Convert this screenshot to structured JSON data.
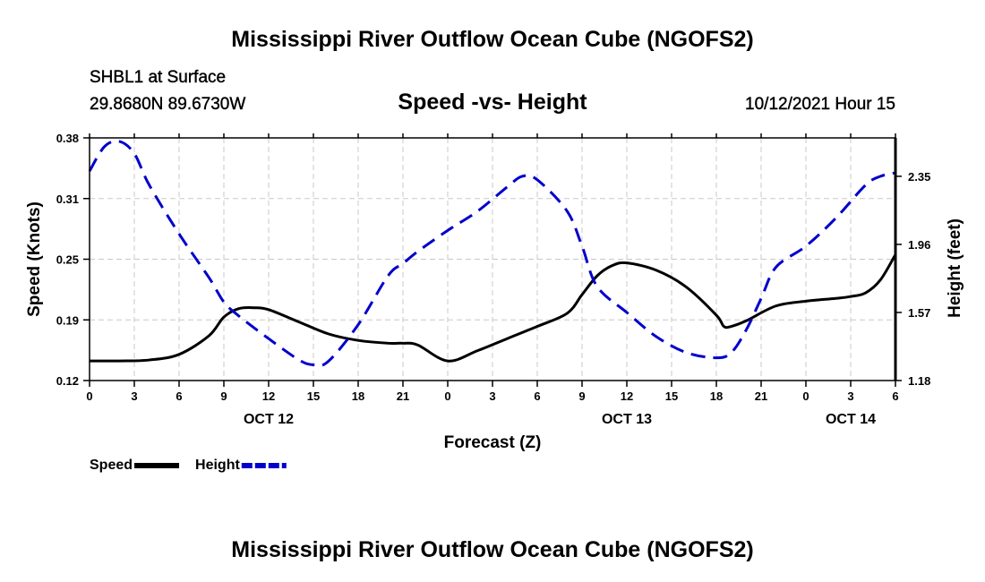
{
  "header": {
    "title": "Mississippi River Outflow Ocean Cube (NGOFS2)",
    "station": "SHBL1 at Surface",
    "coords": "29.8680N  89.6730W",
    "subtitle": "Speed -vs- Height",
    "date": "10/12/2021 Hour 15"
  },
  "footer": {
    "title": "Mississippi River Outflow Ocean Cube (NGOFS2)"
  },
  "chart_data": {
    "type": "line",
    "title": "Speed -vs- Height",
    "xlabel": "Forecast (Z)",
    "ylabel": "Speed (Knots)",
    "ylabel_right": "Height (feet)",
    "grid": true,
    "legend_position": "bottom-left",
    "x_range_hours": [
      0,
      54
    ],
    "x_tick_labels": [
      "0",
      "3",
      "6",
      "9",
      "12",
      "15",
      "18",
      "21",
      "0",
      "3",
      "6",
      "9",
      "12",
      "15",
      "18",
      "21",
      "0",
      "3",
      "6"
    ],
    "day_labels": [
      {
        "label": "OCT 12",
        "hour": 12
      },
      {
        "label": "OCT 13",
        "hour": 36
      },
      {
        "label": "OCT 14",
        "hour": 51
      }
    ],
    "ylim": [
      0.12,
      0.38
    ],
    "y_ticks": [
      "0.12",
      "0.19",
      "0.25",
      "0.31",
      "0.38"
    ],
    "ylim_right": [
      1.18,
      2.57
    ],
    "y_ticks_right": [
      "1.18",
      "1.57",
      "1.96",
      "2.35"
    ],
    "series": [
      {
        "name": "Speed",
        "axis": "left",
        "color": "#000000",
        "style": "solid",
        "x": [
          0,
          2,
          4,
          6,
          8,
          9,
          10,
          11,
          12,
          14,
          16,
          18,
          20,
          21,
          22,
          24,
          26,
          28,
          30,
          32,
          33,
          34,
          35,
          36,
          38,
          40,
          42,
          42.5,
          43,
          44,
          46,
          48,
          50,
          51,
          52,
          53,
          54
        ],
        "y": [
          0.141,
          0.141,
          0.142,
          0.148,
          0.168,
          0.188,
          0.197,
          0.198,
          0.196,
          0.183,
          0.17,
          0.163,
          0.16,
          0.16,
          0.158,
          0.141,
          0.152,
          0.165,
          0.178,
          0.192,
          0.212,
          0.232,
          0.243,
          0.246,
          0.238,
          0.22,
          0.19,
          0.178,
          0.178,
          0.184,
          0.2,
          0.205,
          0.208,
          0.21,
          0.214,
          0.228,
          0.255
        ]
      },
      {
        "name": "Height",
        "axis": "right",
        "color": "#0000cc",
        "style": "dashed",
        "x": [
          0,
          1,
          2,
          3,
          4,
          6,
          8,
          9,
          10,
          12,
          14,
          15,
          16,
          18,
          20,
          21,
          22,
          24,
          26,
          28,
          29,
          30,
          32,
          33,
          34,
          36,
          38,
          40,
          42,
          43,
          44,
          45,
          46,
          48,
          50,
          52,
          53,
          54
        ],
        "y": [
          2.38,
          2.52,
          2.55,
          2.48,
          2.3,
          2.02,
          1.77,
          1.63,
          1.55,
          1.42,
          1.3,
          1.27,
          1.29,
          1.5,
          1.78,
          1.85,
          1.92,
          2.04,
          2.15,
          2.29,
          2.35,
          2.33,
          2.15,
          1.95,
          1.72,
          1.57,
          1.43,
          1.34,
          1.31,
          1.34,
          1.47,
          1.65,
          1.83,
          1.95,
          2.11,
          2.3,
          2.35,
          2.37
        ]
      }
    ]
  }
}
